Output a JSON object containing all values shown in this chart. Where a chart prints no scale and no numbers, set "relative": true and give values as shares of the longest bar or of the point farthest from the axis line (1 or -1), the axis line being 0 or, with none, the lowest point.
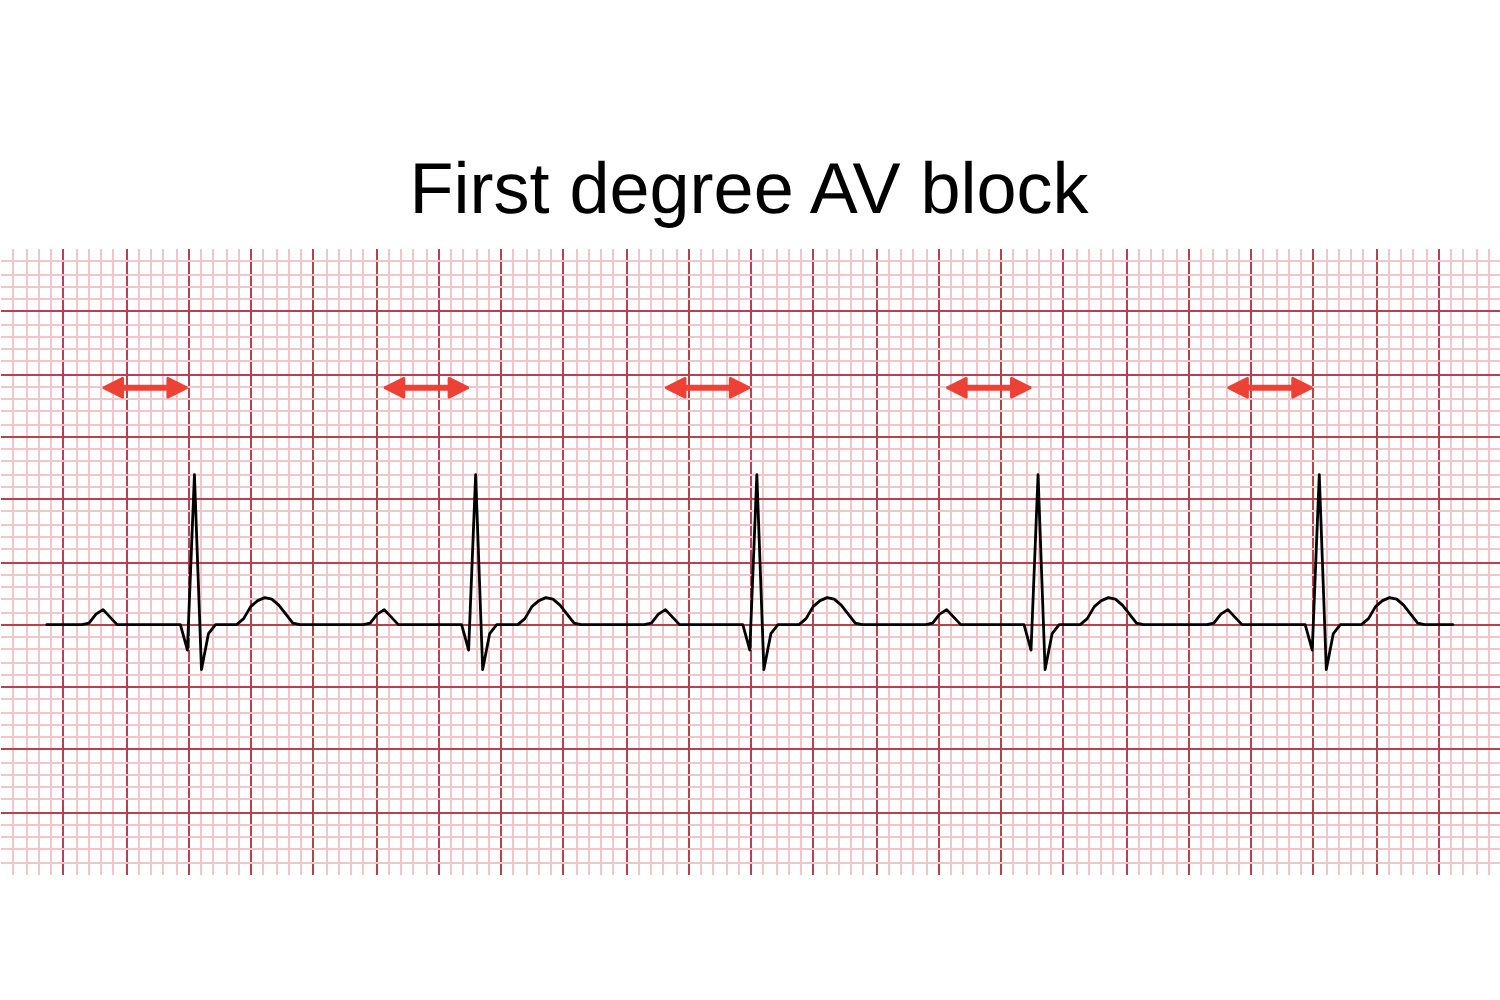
{
  "chart_data": {
    "type": "line",
    "title": "First degree AV block",
    "relative": true,
    "grid": true,
    "line_style": "solid",
    "color": "#000000",
    "categories": [
      null,
      null,
      null,
      null,
      null,
      null,
      null,
      null,
      null,
      null,
      null,
      null,
      null,
      null,
      null,
      null,
      null,
      null,
      null,
      null,
      null,
      null,
      null,
      null,
      null,
      null,
      null,
      null,
      null,
      null,
      null,
      null,
      null,
      null,
      null,
      null,
      null,
      null,
      null,
      null,
      null,
      null,
      null,
      null,
      null,
      null,
      null,
      null,
      null,
      null,
      null,
      null,
      null,
      null,
      null,
      null,
      null,
      null,
      null,
      null,
      null,
      null,
      null,
      null,
      null,
      null,
      null,
      null,
      null,
      null,
      null,
      null,
      null,
      null,
      null,
      null,
      null,
      null,
      null,
      null,
      null,
      null,
      null,
      null,
      null,
      null,
      null,
      null,
      null,
      null,
      null,
      null,
      null,
      null,
      null,
      null,
      null,
      null,
      null,
      null,
      null,
      null,
      null,
      null,
      null,
      null,
      null,
      null,
      null,
      null,
      null,
      null,
      null,
      null,
      null,
      null,
      null,
      null,
      null,
      null,
      null,
      null,
      null,
      null,
      null,
      null,
      null,
      null,
      null,
      null,
      null,
      null,
      null,
      null,
      null,
      null,
      null,
      null,
      null,
      null,
      null,
      null,
      null,
      null,
      null,
      null,
      null,
      null,
      null,
      null,
      null,
      null,
      null,
      null,
      null,
      null,
      null,
      null,
      null,
      null,
      null,
      null,
      null,
      null,
      null,
      null,
      null,
      null,
      null,
      null,
      null,
      null,
      null,
      null,
      null,
      null,
      null,
      null,
      null,
      null,
      null,
      null,
      null,
      null,
      null,
      null,
      null,
      null,
      null,
      null,
      null,
      null,
      null,
      null,
      null,
      null,
      null,
      null,
      null,
      null,
      null
    ],
    "values": [
      0,
      0,
      0,
      0,
      0,
      0,
      0.01,
      0.07,
      0.1,
      0.05,
      0,
      0,
      0,
      0,
      0,
      0,
      0,
      0,
      0,
      0,
      -0.17,
      1.0,
      -0.3,
      -0.06,
      0,
      0,
      0,
      0,
      0.04,
      0.12,
      0.16,
      0.18,
      0.17,
      0.13,
      0.07,
      0.01,
      0,
      0,
      0,
      0,
      0,
      0,
      0,
      0,
      0,
      0,
      0.01,
      0.07,
      0.1,
      0.05,
      0,
      0,
      0,
      0,
      0,
      0,
      0,
      0,
      0,
      0,
      -0.17,
      1.0,
      -0.3,
      -0.06,
      0,
      0,
      0,
      0,
      0.04,
      0.12,
      0.16,
      0.18,
      0.17,
      0.13,
      0.07,
      0.01,
      0,
      0,
      0,
      0,
      0,
      0,
      0,
      0,
      0,
      0,
      0.01,
      0.07,
      0.1,
      0.05,
      0,
      0,
      0,
      0,
      0,
      0,
      0,
      0,
      0,
      0,
      -0.17,
      1.0,
      -0.3,
      -0.06,
      0,
      0,
      0,
      0,
      0.04,
      0.12,
      0.16,
      0.18,
      0.17,
      0.13,
      0.07,
      0.01,
      0,
      0,
      0,
      0,
      0,
      0,
      0,
      0,
      0,
      0,
      0.01,
      0.07,
      0.1,
      0.05,
      0,
      0,
      0,
      0,
      0,
      0,
      0,
      0,
      0,
      0,
      -0.17,
      1.0,
      -0.3,
      -0.06,
      0,
      0,
      0,
      0,
      0.04,
      0.12,
      0.16,
      0.18,
      0.17,
      0.13,
      0.07,
      0.01,
      0,
      0,
      0,
      0,
      0,
      0,
      0,
      0,
      0,
      0,
      0.01,
      0.07,
      0.1,
      0.05,
      0,
      0,
      0,
      0,
      0,
      0,
      0,
      0,
      0,
      0,
      -0.17,
      1.0,
      -0.3,
      -0.06,
      0,
      0,
      0,
      0,
      0.04,
      0.12,
      0.16,
      0.18,
      0.17,
      0.13,
      0.07,
      0.01,
      0,
      0,
      0,
      0,
      0
    ]
  }
}
